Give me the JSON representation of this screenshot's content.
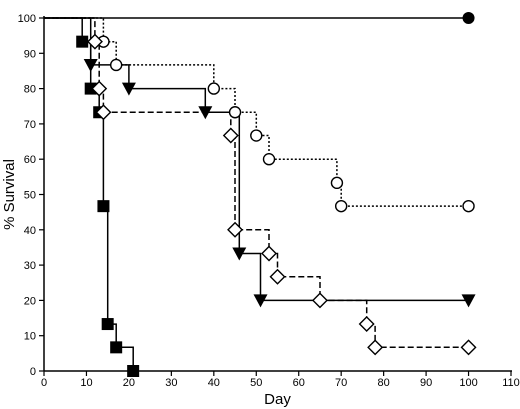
{
  "chart_data": {
    "type": "line",
    "step": true,
    "xlabel": "Day",
    "ylabel": "% Survival",
    "xlim": [
      0,
      110
    ],
    "ylim": [
      0,
      100
    ],
    "x_ticks": [
      0,
      10,
      20,
      30,
      40,
      50,
      60,
      70,
      80,
      90,
      100,
      110
    ],
    "y_ticks": [
      0,
      10,
      20,
      30,
      40,
      50,
      60,
      70,
      80,
      90,
      100
    ],
    "grid": false,
    "legend": "none",
    "series": [
      {
        "marker": "filled-circle",
        "dash": "solid",
        "points": [
          [
            0,
            100
          ],
          [
            100,
            100
          ]
        ],
        "markers": [
          [
            100,
            100
          ]
        ]
      },
      {
        "marker": "filled-square",
        "dash": "solid",
        "points": [
          [
            0,
            100
          ],
          [
            9,
            100
          ],
          [
            9,
            93.3
          ],
          [
            11,
            93.3
          ],
          [
            11,
            80
          ],
          [
            13,
            80
          ],
          [
            13,
            73.3
          ],
          [
            14,
            73.3
          ],
          [
            14,
            46.7
          ],
          [
            15,
            46.7
          ],
          [
            15,
            13.3
          ],
          [
            17,
            13.3
          ],
          [
            17,
            6.7
          ],
          [
            21,
            6.7
          ],
          [
            21,
            0
          ]
        ],
        "markers": [
          [
            9,
            93.3
          ],
          [
            11,
            80
          ],
          [
            13,
            73.3
          ],
          [
            14,
            46.7
          ],
          [
            15,
            13.3
          ],
          [
            17,
            6.7
          ],
          [
            21,
            0
          ]
        ]
      },
      {
        "marker": "filled-triangle-down",
        "dash": "solid",
        "points": [
          [
            0,
            100
          ],
          [
            11,
            100
          ],
          [
            11,
            86.7
          ],
          [
            20,
            86.7
          ],
          [
            20,
            80
          ],
          [
            38,
            80
          ],
          [
            38,
            73.3
          ],
          [
            46,
            73.3
          ],
          [
            46,
            33.3
          ],
          [
            51,
            33.3
          ],
          [
            51,
            20
          ],
          [
            100,
            20
          ]
        ],
        "markers": [
          [
            11,
            86.7
          ],
          [
            20,
            80
          ],
          [
            38,
            73.3
          ],
          [
            46,
            33.3
          ],
          [
            51,
            20
          ],
          [
            100,
            20
          ]
        ]
      },
      {
        "marker": "open-circle",
        "dash": "dotted",
        "points": [
          [
            0,
            100
          ],
          [
            14,
            100
          ],
          [
            14,
            93.3
          ],
          [
            17,
            93.3
          ],
          [
            17,
            86.7
          ],
          [
            40,
            86.7
          ],
          [
            40,
            80
          ],
          [
            45,
            80
          ],
          [
            45,
            73.3
          ],
          [
            50,
            73.3
          ],
          [
            50,
            66.7
          ],
          [
            53,
            66.7
          ],
          [
            53,
            60
          ],
          [
            69,
            60
          ],
          [
            69,
            53.3
          ],
          [
            70,
            53.3
          ],
          [
            70,
            46.7
          ],
          [
            100,
            46.7
          ]
        ],
        "markers": [
          [
            14,
            93.3
          ],
          [
            17,
            86.7
          ],
          [
            40,
            80
          ],
          [
            45,
            73.3
          ],
          [
            50,
            66.7
          ],
          [
            53,
            60
          ],
          [
            69,
            53.3
          ],
          [
            70,
            46.7
          ],
          [
            100,
            46.7
          ]
        ]
      },
      {
        "marker": "open-diamond",
        "dash": "dashed",
        "points": [
          [
            0,
            100
          ],
          [
            12,
            100
          ],
          [
            12,
            93.3
          ],
          [
            13,
            93.3
          ],
          [
            13,
            80
          ],
          [
            14,
            80
          ],
          [
            14,
            73.3
          ],
          [
            44,
            73.3
          ],
          [
            44,
            66.7
          ],
          [
            45,
            66.7
          ],
          [
            45,
            40
          ],
          [
            53,
            40
          ],
          [
            53,
            33.3
          ],
          [
            55,
            33.3
          ],
          [
            55,
            26.7
          ],
          [
            65,
            26.7
          ],
          [
            65,
            20
          ],
          [
            76,
            20
          ],
          [
            76,
            13.3
          ],
          [
            78,
            13.3
          ],
          [
            78,
            6.7
          ],
          [
            100,
            6.7
          ]
        ],
        "markers": [
          [
            12,
            93.3
          ],
          [
            13,
            80
          ],
          [
            14,
            73.3
          ],
          [
            44,
            66.7
          ],
          [
            45,
            40
          ],
          [
            53,
            33.3
          ],
          [
            55,
            26.7
          ],
          [
            65,
            20
          ],
          [
            76,
            13.3
          ],
          [
            78,
            6.7
          ],
          [
            100,
            6.7
          ]
        ]
      }
    ]
  }
}
